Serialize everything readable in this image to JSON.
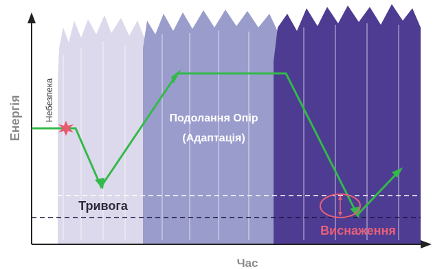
{
  "axes": {
    "y_label": "Енергія",
    "x_label": "Час"
  },
  "phases": {
    "danger": "Небезпека",
    "alarm": "Тривога",
    "resistance_line1": "Подолання Опір",
    "resistance_line2": "(Адаптація)",
    "exhaustion": "Виснаження"
  },
  "colors": {
    "alarm_zone": "#ddd9ec",
    "resistance_zone": "#9a9ccc",
    "exhaustion_zone": "#4e3c92",
    "energy_line": "#33b94a",
    "danger_marker": "#e85a6e",
    "exhaustion_text": "#e8607a",
    "axis": "#222222",
    "axis_label": "#8a8a8a"
  },
  "icons": {
    "danger_marker": "star-burst-icon",
    "exhaustion_marker": "ellipse-with-double-arrow-icon"
  }
}
